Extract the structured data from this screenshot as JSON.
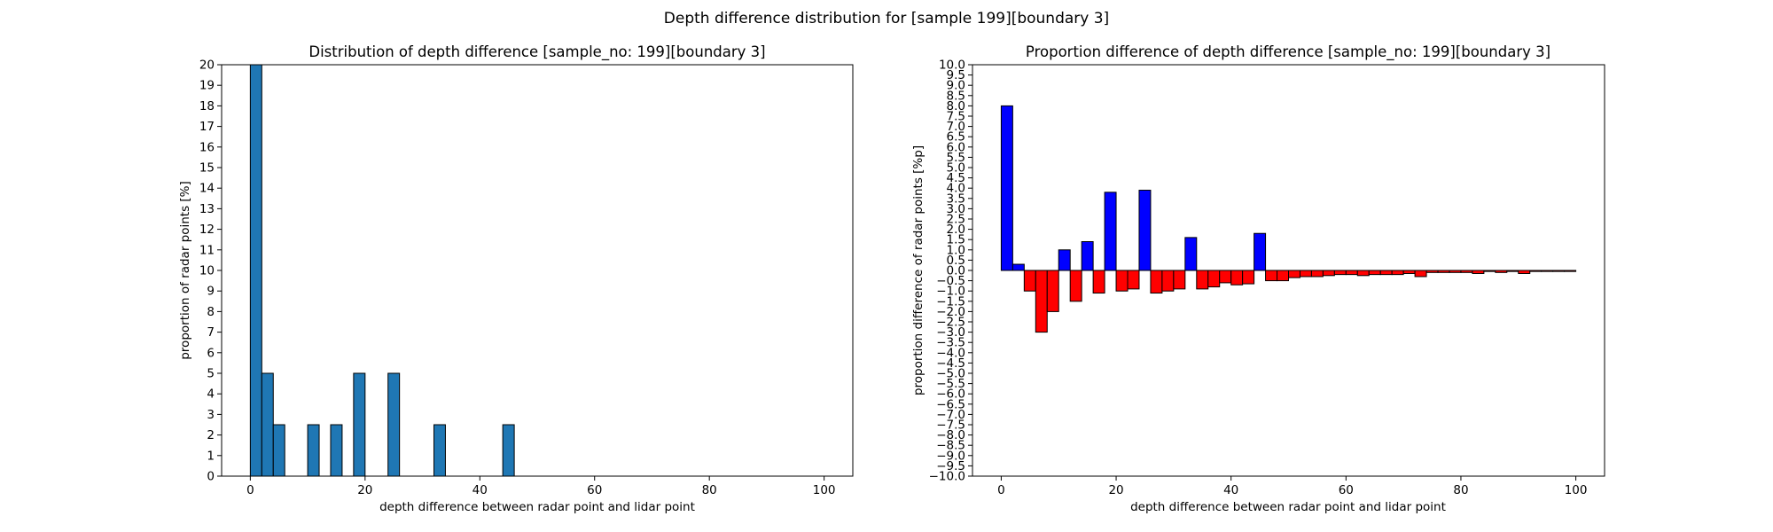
{
  "figure": {
    "suptitle": "Depth difference distribution for [sample 199][boundary 3]"
  },
  "chart_data": [
    {
      "type": "bar",
      "title": "Distribution of depth difference [sample_no: 199][boundary 3]",
      "xlabel": "depth difference between radar point and lidar point",
      "ylabel": "proportion of radar points [%]",
      "xlim": [
        -5,
        105
      ],
      "ylim": [
        0,
        20
      ],
      "xticks": [
        0,
        20,
        40,
        60,
        80,
        100
      ],
      "yticks": [
        0,
        1,
        2,
        3,
        4,
        5,
        6,
        7,
        8,
        9,
        10,
        11,
        12,
        13,
        14,
        15,
        16,
        17,
        18,
        19,
        20
      ],
      "bin_width": 2,
      "bin_start": 0,
      "bar_color": "#1f77b4",
      "edge_color": "#000000",
      "values": [
        20,
        5,
        2.5,
        0,
        0,
        2.5,
        0,
        2.5,
        0,
        5,
        0,
        0,
        5,
        0,
        0,
        0,
        2.5,
        0,
        0,
        0,
        0,
        0,
        2.5,
        0,
        0,
        0,
        0,
        0,
        0,
        0,
        0,
        0,
        0,
        0,
        0,
        0,
        0,
        0,
        0,
        0,
        0,
        0,
        0,
        0,
        0,
        0,
        0,
        0,
        0,
        0
      ]
    },
    {
      "type": "bar",
      "title": "Proportion difference of depth difference [sample_no: 199][boundary 3]",
      "xlabel": "depth difference between radar point and lidar point",
      "ylabel": "proportion difference of radar points [%p]",
      "xlim": [
        -5,
        105
      ],
      "ylim": [
        -10,
        10
      ],
      "xticks": [
        0,
        20,
        40,
        60,
        80,
        100
      ],
      "yticks": [
        -10,
        -9.5,
        -9,
        -8.5,
        -8,
        -7.5,
        -7,
        -6.5,
        -6,
        -5.5,
        -5,
        -4.5,
        -4,
        -3.5,
        -3,
        -2.5,
        -2,
        -1.5,
        -1,
        -0.5,
        0,
        0.5,
        1,
        1.5,
        2,
        2.5,
        3,
        3.5,
        4,
        4.5,
        5,
        5.5,
        6,
        6.5,
        7,
        7.5,
        8,
        8.5,
        9,
        9.5,
        10
      ],
      "bin_width": 2,
      "bin_start": 0,
      "positive_color": "#0000ff",
      "negative_color": "#ff0000",
      "edge_color": "#000000",
      "values": [
        8.0,
        0.3,
        -1.0,
        -3.0,
        -2.0,
        1.0,
        -1.5,
        1.4,
        -1.1,
        3.8,
        -1.0,
        -0.9,
        3.9,
        -1.1,
        -1.0,
        -0.9,
        1.6,
        -0.9,
        -0.8,
        -0.6,
        -0.7,
        -0.65,
        1.8,
        -0.5,
        -0.5,
        -0.35,
        -0.3,
        -0.3,
        -0.25,
        -0.2,
        -0.2,
        -0.25,
        -0.2,
        -0.2,
        -0.2,
        -0.15,
        -0.3,
        -0.1,
        -0.1,
        -0.1,
        -0.1,
        -0.15,
        -0.05,
        -0.1,
        -0.05,
        -0.15,
        -0.05,
        -0.05,
        -0.05,
        -0.05
      ]
    }
  ]
}
